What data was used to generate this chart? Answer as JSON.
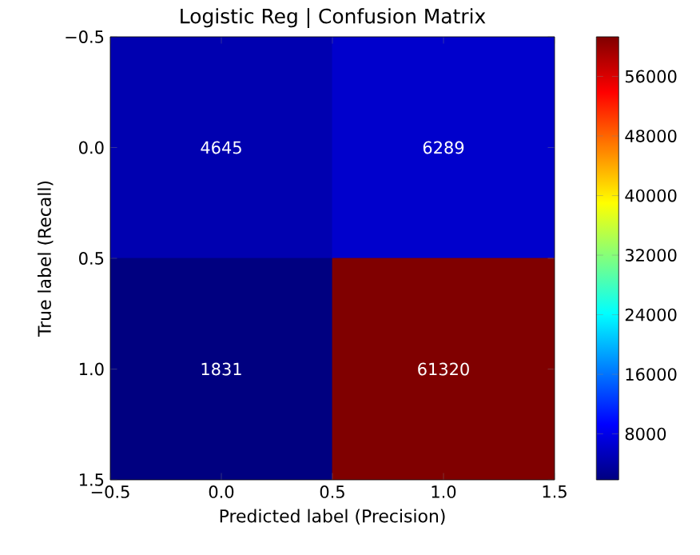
{
  "chart_data": {
    "type": "heatmap",
    "title": "Logistic Reg | Confusion Matrix",
    "xlabel": "Predicted label (Precision)",
    "ylabel": "True label (Recall)",
    "cells": [
      [
        4645,
        6289
      ],
      [
        1831,
        61320
      ]
    ],
    "data_labels": true,
    "xlim": [
      -0.5,
      1.5
    ],
    "xticks": [
      {
        "value": -0.5,
        "label": "−0.5"
      },
      {
        "value": 0,
        "label": "0.0"
      },
      {
        "value": 0.5,
        "label": "0.5"
      },
      {
        "value": 1,
        "label": "1.0"
      },
      {
        "value": 1.5,
        "label": "1.5"
      }
    ],
    "ylim": [
      1.5,
      -0.5
    ],
    "yticks": [
      {
        "value": -0.5,
        "label": "−0.5"
      },
      {
        "value": 0,
        "label": "0.0"
      },
      {
        "value": 0.5,
        "label": "0.5"
      },
      {
        "value": 1,
        "label": "1.0"
      },
      {
        "value": 1.5,
        "label": "1.5"
      }
    ],
    "clim": [
      1831,
      61320
    ],
    "cticks": [
      8000,
      16000,
      24000,
      32000,
      40000,
      48000,
      56000
    ]
  }
}
